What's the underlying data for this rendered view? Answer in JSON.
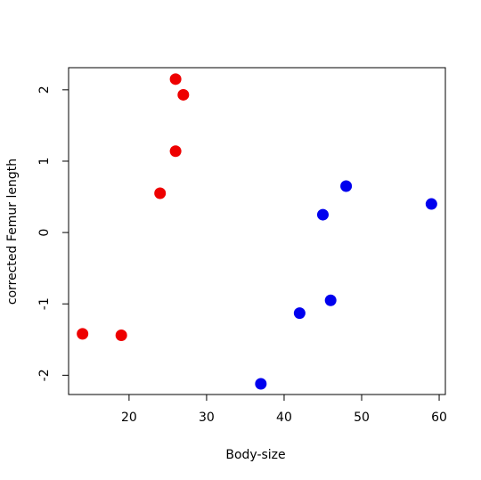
{
  "chart_data": {
    "type": "scatter",
    "x_label": "Body-size",
    "y_label": "corrected Femur length",
    "series": [
      {
        "color": "#ee0000",
        "x": [
          14,
          19,
          24,
          26,
          26,
          27
        ],
        "values": [
          -1.42,
          -1.44,
          0.55,
          1.14,
          2.15,
          1.93
        ]
      },
      {
        "color": "#0000ee",
        "x": [
          37,
          42,
          46,
          45,
          48,
          59
        ],
        "values": [
          -2.12,
          -1.13,
          -0.95,
          0.25,
          0.65,
          0.4
        ]
      }
    ],
    "xlim": [
      12.2,
      60.8
    ],
    "ylim": [
      -2.27,
      2.31
    ],
    "xticks": [
      20,
      30,
      40,
      50,
      60
    ],
    "yticks": [
      -2,
      -1,
      0,
      1,
      2
    ]
  }
}
